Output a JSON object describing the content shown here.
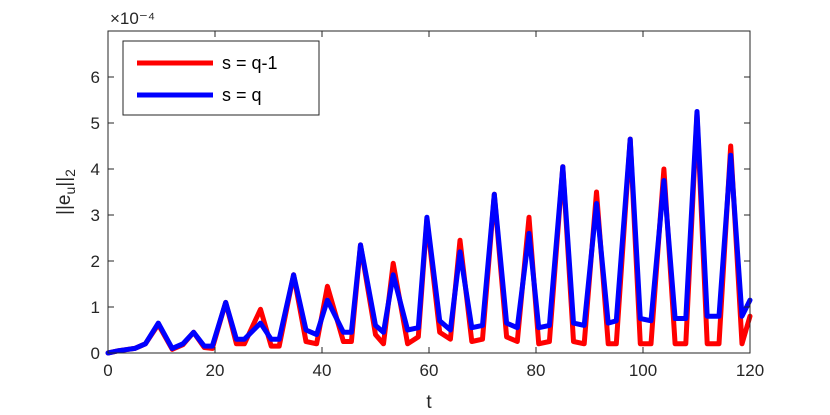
{
  "chart_data": {
    "type": "line",
    "title": "",
    "xlabel": "t",
    "ylabel": "||e_u||_2",
    "xlim": [
      0,
      120
    ],
    "ylim": [
      0,
      7
    ],
    "y_exponent_label": "×10⁻⁴",
    "y_scale_factor": "1e-4",
    "xticks": [
      0,
      20,
      40,
      60,
      80,
      100,
      120
    ],
    "yticks": [
      0,
      1,
      2,
      3,
      4,
      5,
      6
    ],
    "grid": false,
    "legend_position": "top-left",
    "series": [
      {
        "name": "s = q-1",
        "color": "#ff0000",
        "x": [
          0,
          2,
          5,
          7,
          9.4,
          12,
          14,
          16,
          18,
          19.5,
          22,
          24,
          25.5,
          28.5,
          30.5,
          32,
          34.7,
          37,
          39,
          41,
          44,
          45.5,
          47.2,
          50,
          51.5,
          53.3,
          56,
          58,
          59.6,
          62,
          64,
          65.8,
          68,
          70,
          72.2,
          74.5,
          76.5,
          78.7,
          80.5,
          82.5,
          85,
          87,
          89,
          91.3,
          93.5,
          95,
          97.6,
          99.5,
          101.5,
          103.9,
          106,
          108,
          110.1,
          112,
          114.2,
          116.4,
          118.5,
          120
        ],
        "y": [
          0,
          0.05,
          0.1,
          0.2,
          0.62,
          0.08,
          0.18,
          0.45,
          0.12,
          0.1,
          1.1,
          0.2,
          0.2,
          0.95,
          0.15,
          0.15,
          1.7,
          0.25,
          0.2,
          1.45,
          0.25,
          0.25,
          2.35,
          0.4,
          0.2,
          1.95,
          0.2,
          0.35,
          2.9,
          0.45,
          0.3,
          2.45,
          0.25,
          0.3,
          3.45,
          0.35,
          0.25,
          2.95,
          0.2,
          0.25,
          4.05,
          0.25,
          0.2,
          3.5,
          0.2,
          0.2,
          4.65,
          0.2,
          0.2,
          4.0,
          0.2,
          0.2,
          5.2,
          0.2,
          0.2,
          4.5,
          0.2,
          0.8
        ]
      },
      {
        "name": "s = q",
        "color": "#0000ff",
        "x": [
          0,
          2,
          5,
          7,
          9.4,
          12,
          14,
          16,
          18,
          19.5,
          22,
          24,
          25.5,
          28.5,
          30.5,
          32,
          34.7,
          37,
          39,
          41,
          44,
          45.5,
          47.2,
          50,
          51.5,
          53.3,
          56,
          58,
          59.6,
          62,
          64,
          65.8,
          68,
          70,
          72.2,
          74.5,
          76.5,
          78.7,
          80.5,
          82.5,
          85,
          87,
          89,
          91.3,
          93.5,
          95,
          97.6,
          99.5,
          101.5,
          103.9,
          106,
          108,
          110.1,
          112,
          114.2,
          116.4,
          118.5,
          120
        ],
        "y": [
          0,
          0.05,
          0.1,
          0.2,
          0.65,
          0.1,
          0.2,
          0.45,
          0.15,
          0.15,
          1.1,
          0.3,
          0.3,
          0.65,
          0.3,
          0.3,
          1.7,
          0.5,
          0.4,
          1.15,
          0.45,
          0.45,
          2.35,
          0.6,
          0.45,
          1.7,
          0.5,
          0.55,
          2.95,
          0.7,
          0.5,
          2.2,
          0.55,
          0.6,
          3.45,
          0.65,
          0.55,
          2.6,
          0.55,
          0.6,
          4.05,
          0.65,
          0.6,
          3.25,
          0.65,
          0.7,
          4.65,
          0.75,
          0.7,
          3.75,
          0.75,
          0.75,
          5.25,
          0.8,
          0.8,
          4.3,
          0.8,
          1.15
        ]
      }
    ]
  }
}
